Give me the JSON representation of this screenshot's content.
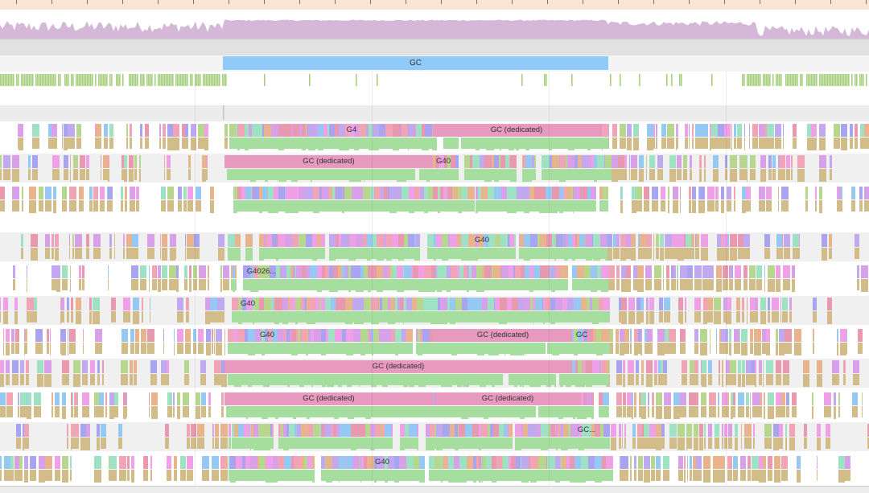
{
  "ruler": {
    "tick_count": 25
  },
  "gc_track": {
    "label": "GC"
  },
  "colors": {
    "ruler_bg": "#fbe4d5",
    "density_fill": "#d5b7d8",
    "gc_span": "#90caf9",
    "gc_dedicated": "#e899c0",
    "thread_fill": "#a8cf80",
    "stack_fill": "#d2bd8a",
    "goroutine_palette": [
      "#e899b0",
      "#a8a4ef",
      "#f0a0e6",
      "#95c8f2",
      "#9fe1c3",
      "#e8b48e",
      "#c1a9ef",
      "#b7d68e",
      "#f1a4b5",
      "#d7a0e8"
    ],
    "dense_green": "#a6dea0"
  },
  "procs": [
    {
      "labels": [
        {
          "text": "G4",
          "kind": "tag"
        },
        {
          "text": "GC (dedicated)",
          "kind": "gc"
        }
      ]
    },
    {
      "labels": [
        {
          "text": "GC (dedicated)",
          "kind": "gc"
        },
        {
          "text": "G40",
          "kind": "tag"
        }
      ]
    },
    {
      "labels": []
    },
    {
      "labels": [
        {
          "text": "G40",
          "kind": "tag"
        }
      ]
    },
    {
      "labels": [
        {
          "text": "G4026...",
          "kind": "tag"
        }
      ]
    },
    {
      "labels": [
        {
          "text": "G40",
          "kind": "tag"
        }
      ]
    },
    {
      "labels": [
        {
          "text": "G40",
          "kind": "tag"
        },
        {
          "text": "GC (dedicated)",
          "kind": "gc"
        },
        {
          "text": "GC",
          "kind": "tag"
        }
      ]
    },
    {
      "labels": [
        {
          "text": "GC (dedicated)",
          "kind": "gc"
        }
      ]
    },
    {
      "labels": [
        {
          "text": "GC (dedicated)",
          "kind": "gc"
        },
        {
          "text": "GC (dedicated)",
          "kind": "gc"
        }
      ]
    },
    {
      "labels": [
        {
          "text": "GC...",
          "kind": "tag"
        }
      ]
    },
    {
      "labels": [
        {
          "text": "G40",
          "kind": "tag"
        }
      ]
    }
  ]
}
